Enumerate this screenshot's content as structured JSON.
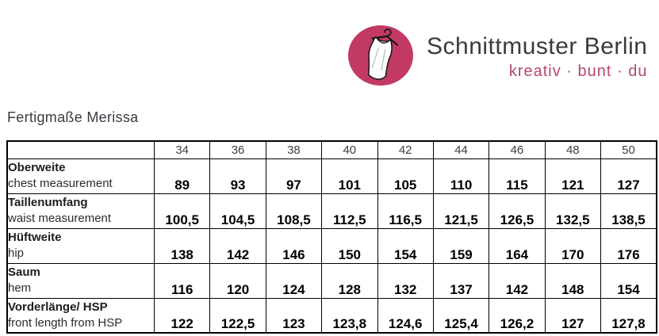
{
  "logo": {
    "brand": "Schnittmuster Berlin",
    "tagline": "kreativ · bunt · du",
    "icon": "dress-on-hanger-icon",
    "circle_color": "#c23a64",
    "brand_color": "#3b3b3b",
    "tagline_color": "#b5476c"
  },
  "page": {
    "title": "Fertigmaße Merissa"
  },
  "table": {
    "sizes": [
      "34",
      "36",
      "38",
      "40",
      "42",
      "44",
      "46",
      "48",
      "50"
    ],
    "rows": [
      {
        "label_de": "Oberweite",
        "label_en": "chest measurement",
        "values": [
          "89",
          "93",
          "97",
          "101",
          "105",
          "110",
          "115",
          "121",
          "127"
        ]
      },
      {
        "label_de": "Taillenumfang",
        "label_en": "waist measurement",
        "values": [
          "100,5",
          "104,5",
          "108,5",
          "112,5",
          "116,5",
          "121,5",
          "126,5",
          "132,5",
          "138,5"
        ]
      },
      {
        "label_de": "Hüftweite",
        "label_en": "hip",
        "values": [
          "138",
          "142",
          "146",
          "150",
          "154",
          "159",
          "164",
          "170",
          "176"
        ]
      },
      {
        "label_de": "Saum",
        "label_en": "hem",
        "values": [
          "116",
          "120",
          "124",
          "128",
          "132",
          "137",
          "142",
          "148",
          "154"
        ]
      },
      {
        "label_de": "Vorderlänge/ HSP",
        "label_en": "front length from HSP",
        "values": [
          "122",
          "122,5",
          "123",
          "123,8",
          "124,6",
          "125,4",
          "126,2",
          "127",
          "127,8"
        ]
      }
    ]
  }
}
